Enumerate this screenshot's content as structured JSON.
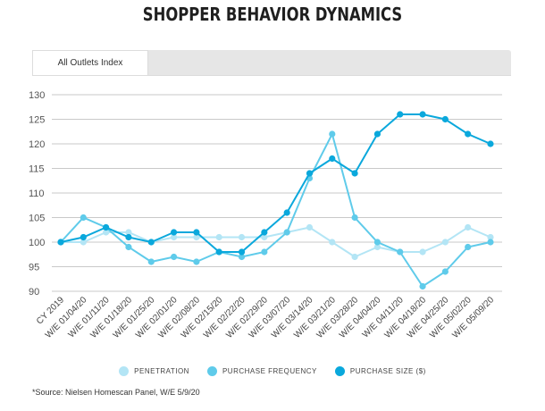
{
  "header": {
    "title": "SHOPPER BEHAVIOR DYNAMICS"
  },
  "tabs": [
    {
      "label": "All Outlets Index"
    }
  ],
  "chart_data": {
    "type": "line",
    "categories": [
      "CY 2019",
      "W/E 01/04/20",
      "W/E 01/11/20",
      "W/E 01/18/20",
      "W/E 01/25/20",
      "W/E 02/01/20",
      "W/E 02/08/20",
      "W/E 02/15/20",
      "W/E 02/22/20",
      "W/E 02/29/20",
      "W/E 03/07/20",
      "W/E 03/14/20",
      "W/E 03/21/20",
      "W/E 03/28/20",
      "W/E 04/04/20",
      "W/E 04/11/20",
      "W/E 04/18/20",
      "W/E 04/25/20",
      "W/E 05/02/20",
      "W/E 05/09/20"
    ],
    "yticks": [
      90,
      95,
      100,
      105,
      110,
      115,
      120,
      125,
      130
    ],
    "ylim": [
      90,
      130
    ],
    "grid": "horizontal",
    "legend_position": "bottom",
    "series": [
      {
        "name": "PENETRATION",
        "color": "#b3e5f5",
        "values": [
          100,
          100,
          102,
          102,
          100,
          101,
          101,
          101,
          101,
          101,
          102,
          103,
          100,
          97,
          99,
          98,
          98,
          100,
          103,
          101
        ]
      },
      {
        "name": "PURCHASE FREQUENCY",
        "color": "#5fcbea",
        "values": [
          100,
          105,
          103,
          99,
          96,
          97,
          96,
          98,
          97,
          98,
          102,
          113,
          122,
          105,
          100,
          98,
          91,
          94,
          99,
          100
        ]
      },
      {
        "name": "PURCHASE SIZE ($)",
        "color": "#0aa8dc",
        "values": [
          100,
          101,
          103,
          101,
          100,
          102,
          102,
          98,
          98,
          102,
          106,
          114,
          117,
          114,
          122,
          126,
          126,
          125,
          122,
          120
        ]
      }
    ]
  },
  "footer": {
    "source": "*Source: Nielsen Homescan Panel, W/E 5/9/20"
  }
}
